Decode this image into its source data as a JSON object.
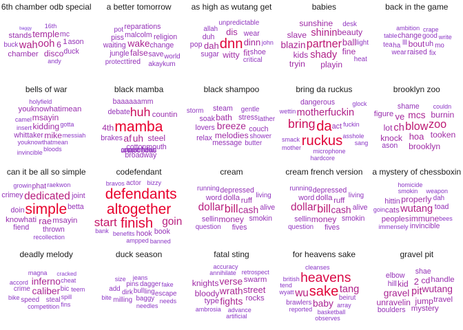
{
  "colors": {
    "low": "#7b3fe0",
    "high": "#e8002d",
    "background": "#ffffff"
  },
  "panels": [
    {
      "title": "6th chamber odb special",
      "words": [
        [
          "ason",
          0.35
        ],
        [
          "6",
          0.45
        ],
        [
          "chamber",
          0.4
        ],
        [
          "16th",
          0.25
        ],
        [
          "duck",
          0.35
        ],
        [
          "ooh",
          0.6
        ],
        [
          "wah",
          0.6
        ],
        [
          "1",
          0.4
        ],
        [
          "mc",
          0.35
        ],
        [
          "disco",
          0.45
        ],
        [
          "buck",
          0.3
        ],
        [
          "temple",
          0.5
        ],
        [
          "stands",
          0.4
        ],
        [
          "andy",
          0.25
        ],
        [
          "baggy",
          0.1
        ]
      ]
    },
    {
      "title": "a better tomorrow",
      "words": [
        [
          "malcolm",
          0.35
        ],
        [
          "change",
          0.35
        ],
        [
          "reparations",
          0.35
        ],
        [
          "world",
          0.3
        ],
        [
          "waiting",
          0.35
        ],
        [
          "wake",
          0.55
        ],
        [
          "religion",
          0.35
        ],
        [
          "pot",
          0.3
        ],
        [
          "piss",
          0.35
        ],
        [
          "false",
          0.45
        ],
        [
          "akaykum",
          0.3
        ],
        [
          "jungle",
          0.35
        ],
        [
          "save",
          0.35
        ],
        [
          "tired",
          0.35
        ],
        [
          "protect",
          0.3
        ]
      ]
    },
    {
      "title": "as high as wutang get",
      "words": [
        [
          "allah",
          0.3
        ],
        [
          "witty",
          0.45
        ],
        [
          "dinn",
          0.5
        ],
        [
          "fit",
          0.45
        ],
        [
          "john",
          0.25
        ],
        [
          "duh",
          0.35
        ],
        [
          "dah",
          0.5
        ],
        [
          "dnn",
          0.95
        ],
        [
          "critical",
          0.3
        ],
        [
          "sugar",
          0.35
        ],
        [
          "wear",
          0.35
        ],
        [
          "dis",
          0.5
        ],
        [
          "shoe",
          0.35
        ],
        [
          "pop",
          0.35
        ],
        [
          "unpredictable",
          0.3
        ]
      ]
    },
    {
      "title": "babies",
      "words": [
        [
          "desk",
          0.3
        ],
        [
          "heat",
          0.3
        ],
        [
          "light",
          0.3
        ],
        [
          "sunshine",
          0.45
        ],
        [
          "shinin",
          0.6
        ],
        [
          "slave",
          0.45
        ],
        [
          "blazin",
          0.55
        ],
        [
          "partner",
          0.7
        ],
        [
          "fine",
          0.45
        ],
        [
          "shady",
          0.6
        ],
        [
          "ball",
          0.5
        ],
        [
          "beauty",
          0.45
        ],
        [
          "kids",
          0.45
        ],
        [
          "playin",
          0.45
        ],
        [
          "tryin",
          0.45
        ]
      ]
    },
    {
      "title": "back in the game",
      "words": [
        [
          "table",
          0.25
        ],
        [
          "write",
          0.25
        ],
        [
          "raised",
          0.35
        ],
        [
          "lll",
          0.3
        ],
        [
          "ha",
          0.3
        ],
        [
          "good",
          0.3
        ],
        [
          "bout",
          0.45
        ],
        [
          "mo",
          0.3
        ],
        [
          "fix",
          0.3
        ],
        [
          "wear",
          0.3
        ],
        [
          "change",
          0.35
        ],
        [
          "tea",
          0.3
        ],
        [
          "ambition",
          0.25
        ],
        [
          "crape",
          0.25
        ],
        [
          "uh",
          0.35
        ]
      ]
    },
    {
      "title": "bells of war",
      "words": [
        [
          "youknowthatmean",
          0.25
        ],
        [
          "insert",
          0.25
        ],
        [
          "kidding",
          0.45
        ],
        [
          "gotta",
          0.25
        ],
        [
          "whittaker",
          0.35
        ],
        [
          "youknowhatimean",
          0.4
        ],
        [
          "camel",
          0.25
        ],
        [
          "messiah",
          0.25
        ],
        [
          "bloods",
          0.25
        ],
        [
          "msayin",
          0.45
        ],
        [
          "mike",
          0.45
        ],
        [
          "holyfield",
          0.25
        ],
        [
          "invincible",
          0.25
        ]
      ]
    },
    {
      "title": "black mamba",
      "words": [
        [
          "cottonmouth",
          0.35
        ],
        [
          "baaaaaamm",
          0.35
        ],
        [
          "countin",
          0.4
        ],
        [
          "huh",
          0.8
        ],
        [
          "uh",
          0.55
        ],
        [
          "af",
          0.55
        ],
        [
          "mamba",
          1.0
        ],
        [
          "debate",
          0.35
        ],
        [
          "brakes",
          0.35
        ],
        [
          "broadway",
          0.35
        ],
        [
          "steel",
          0.45
        ],
        [
          "4th",
          0.45
        ],
        [
          "anacondas",
          0.35
        ],
        [
          "constrictor",
          0.3
        ],
        [
          "copperhead",
          0.3
        ]
      ]
    },
    {
      "title": "black shampoo",
      "words": [
        [
          "stress",
          0.35
        ],
        [
          "lovers",
          0.35
        ],
        [
          "couch",
          0.35
        ],
        [
          "shower",
          0.3
        ],
        [
          "melodies",
          0.45
        ],
        [
          "gentle",
          0.3
        ],
        [
          "soak",
          0.35
        ],
        [
          "breeze",
          0.55
        ],
        [
          "lather",
          0.3
        ],
        [
          "message",
          0.35
        ],
        [
          "bath",
          0.45
        ],
        [
          "steam",
          0.35
        ],
        [
          "relax",
          0.35
        ],
        [
          "butter",
          0.3
        ],
        [
          "storm",
          0.3
        ]
      ]
    },
    {
      "title": "bring da ruckus",
      "words": [
        [
          "fuckin",
          0.25
        ],
        [
          "microphone",
          0.25
        ],
        [
          "asshole",
          0.25
        ],
        [
          "smack",
          0.25
        ],
        [
          "da",
          0.95
        ],
        [
          "bring",
          0.8
        ],
        [
          "wettin",
          0.25
        ],
        [
          "sang",
          0.25
        ],
        [
          "ruckus",
          0.95
        ],
        [
          "act",
          0.35
        ],
        [
          "mother",
          0.25
        ],
        [
          "glock",
          0.25
        ],
        [
          "motherfuckin",
          0.6
        ],
        [
          "dangerous",
          0.35
        ],
        [
          "hardcore",
          0.25
        ]
      ]
    },
    {
      "title": "brooklyn zoo",
      "words": [
        [
          "tooken",
          0.45
        ],
        [
          "knock",
          0.45
        ],
        [
          "couldn",
          0.25
        ],
        [
          "lot",
          0.45
        ],
        [
          "ch",
          0.6
        ],
        [
          "mcs",
          0.55
        ],
        [
          "figure",
          0.4
        ],
        [
          "hoa",
          0.5
        ],
        [
          "blow",
          0.7
        ],
        [
          "burnin",
          0.45
        ],
        [
          "zoo",
          0.7
        ],
        [
          "shame",
          0.35
        ],
        [
          "brooklyn",
          0.45
        ],
        [
          "ve",
          0.5
        ],
        [
          "ason",
          0.35
        ]
      ]
    },
    {
      "title": "can it be all so simple",
      "words": [
        [
          "raekwon",
          0.25
        ],
        [
          "dedicated",
          0.65
        ],
        [
          "betta",
          0.35
        ],
        [
          "doin",
          0.35
        ],
        [
          "simple",
          1.0
        ],
        [
          "crimey",
          0.35
        ],
        [
          "thrown",
          0.35
        ],
        [
          "joint",
          0.35
        ],
        [
          "msayin",
          0.4
        ],
        [
          "rae",
          0.5
        ],
        [
          "knowhati",
          0.4
        ],
        [
          "fiend",
          0.35
        ],
        [
          "growin",
          0.25
        ],
        [
          "recollection",
          0.25
        ],
        [
          "phat",
          0.35
        ]
      ]
    },
    {
      "title": "codefendant",
      "words": [
        [
          "benefits",
          0.25
        ],
        [
          "goin",
          0.65
        ],
        [
          "book",
          0.35
        ],
        [
          "bizzy",
          0.25
        ],
        [
          "altogether",
          1.0
        ],
        [
          "defendants",
          1.0
        ],
        [
          "finish",
          0.95
        ],
        [
          "hook",
          0.35
        ],
        [
          "start",
          0.75
        ],
        [
          "actor",
          0.3
        ],
        [
          "bravos",
          0.25
        ],
        [
          "ampped",
          0.25
        ],
        [
          "bank",
          0.25
        ],
        [
          "banned",
          0.25
        ]
      ]
    },
    {
      "title": "cream",
      "words": [
        [
          "word",
          0.35
        ],
        [
          "sellin",
          0.35
        ],
        [
          "smokin",
          0.35
        ],
        [
          "depressed",
          0.35
        ],
        [
          "alive",
          0.35
        ],
        [
          "living",
          0.3
        ],
        [
          "cash",
          0.55
        ],
        [
          "bill",
          0.7
        ],
        [
          "dollar",
          0.65
        ],
        [
          "fives",
          0.35
        ],
        [
          "money",
          0.45
        ],
        [
          "dolla",
          0.4
        ],
        [
          "ruff",
          0.4
        ],
        [
          "question",
          0.3
        ],
        [
          "running",
          0.3
        ]
      ]
    },
    {
      "title": "cream french version",
      "words": [
        [
          "word",
          0.35
        ],
        [
          "sellin",
          0.35
        ],
        [
          "smokin",
          0.35
        ],
        [
          "depressed",
          0.35
        ],
        [
          "alive",
          0.35
        ],
        [
          "living",
          0.3
        ],
        [
          "cash",
          0.55
        ],
        [
          "bill",
          0.7
        ],
        [
          "dollar",
          0.65
        ],
        [
          "fives",
          0.35
        ],
        [
          "money",
          0.45
        ],
        [
          "dolla",
          0.4
        ],
        [
          "ruff",
          0.4
        ],
        [
          "question",
          0.3
        ],
        [
          "running",
          0.3
        ]
      ]
    },
    {
      "title": "a mystery of chessboxin",
      "words": [
        [
          "smokin",
          0.25
        ],
        [
          "bees",
          0.25
        ],
        [
          "invincible",
          0.35
        ],
        [
          "properly",
          0.45
        ],
        [
          "immune",
          0.45
        ],
        [
          "toad",
          0.35
        ],
        [
          "hittin",
          0.35
        ],
        [
          "wutang",
          0.6
        ],
        [
          "dah",
          0.3
        ],
        [
          "weapon",
          0.25
        ],
        [
          "immensely",
          0.25
        ],
        [
          "peoples",
          0.4
        ],
        [
          "homicide",
          0.25
        ],
        [
          "cats",
          0.4
        ],
        [
          "goin",
          0.25
        ]
      ]
    },
    {
      "title": "deadly melody",
      "words": [
        [
          "cracked",
          0.2
        ],
        [
          "spill",
          0.25
        ],
        [
          "cheat",
          0.25
        ],
        [
          "competition",
          0.25
        ],
        [
          "steal",
          0.3
        ],
        [
          "teem",
          0.25
        ],
        [
          "accord",
          0.25
        ],
        [
          "caliber",
          0.55
        ],
        [
          "magna",
          0.25
        ],
        [
          "inferno",
          0.55
        ],
        [
          "bic",
          0.3
        ],
        [
          "speed",
          0.3
        ],
        [
          "bike",
          0.25
        ],
        [
          "crime",
          0.3
        ],
        [
          "fins",
          0.25
        ]
      ]
    },
    {
      "title": "duck season",
      "words": [
        [
          "jeans",
          0.25
        ],
        [
          "bull",
          0.3
        ],
        [
          "size",
          0.25
        ],
        [
          "needles",
          0.25
        ],
        [
          "dirk",
          0.3
        ],
        [
          "fake",
          0.25
        ],
        [
          "ling",
          0.3
        ],
        [
          "pins",
          0.3
        ],
        [
          "baggy",
          0.3
        ],
        [
          "dagger",
          0.3
        ],
        [
          "needs",
          0.25
        ],
        [
          "milling",
          0.3
        ],
        [
          "escape",
          0.3
        ],
        [
          "bite",
          0.25
        ],
        [
          "add",
          0.3
        ]
      ]
    },
    {
      "title": "fatal sting",
      "words": [
        [
          "annihilate",
          0.25
        ],
        [
          "advance",
          0.25
        ],
        [
          "rocks",
          0.4
        ],
        [
          "ambrosia",
          0.25
        ],
        [
          "wrath",
          0.55
        ],
        [
          "verse",
          0.55
        ],
        [
          "retrospect",
          0.25
        ],
        [
          "bloody",
          0.45
        ],
        [
          "street",
          0.5
        ],
        [
          "knights",
          0.45
        ],
        [
          "type",
          0.4
        ],
        [
          "fights",
          0.55
        ],
        [
          "swarm",
          0.4
        ],
        [
          "accuracy",
          0.25
        ],
        [
          "artificial",
          0.25
        ]
      ]
    },
    {
      "title": "for heavens sake",
      "words": [
        [
          "beirut",
          0.3
        ],
        [
          "brawlers",
          0.3
        ],
        [
          "basketball",
          0.25
        ],
        [
          "tang",
          0.6
        ],
        [
          "wu",
          0.65
        ],
        [
          "reported",
          0.25
        ],
        [
          "baby",
          0.55
        ],
        [
          "heavens",
          0.9
        ],
        [
          "array",
          0.25
        ],
        [
          "sake",
          0.95
        ],
        [
          "cleanses",
          0.25
        ],
        [
          "british",
          0.25
        ],
        [
          "wyatt",
          0.25
        ],
        [
          "observes",
          0.25
        ],
        [
          "tend",
          0.25
        ]
      ]
    },
    {
      "title": "gravel pit",
      "words": [
        [
          "handle",
          0.4
        ],
        [
          "kid",
          0.45
        ],
        [
          "jump",
          0.45
        ],
        [
          "unravelin",
          0.45
        ],
        [
          "cd",
          0.45
        ],
        [
          "hill",
          0.35
        ],
        [
          "travel",
          0.4
        ],
        [
          "wutang",
          0.55
        ],
        [
          "gravel",
          0.55
        ],
        [
          "pit",
          0.6
        ],
        [
          "elbow",
          0.35
        ],
        [
          "shae",
          0.35
        ],
        [
          "mystery",
          0.4
        ],
        [
          "boulders",
          0.35
        ],
        [
          "2",
          0.5
        ]
      ]
    }
  ]
}
